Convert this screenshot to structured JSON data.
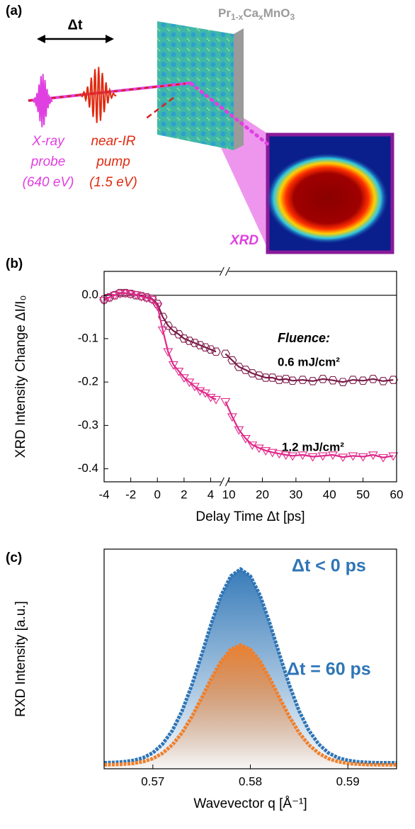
{
  "diagram": {
    "label": "(a)",
    "delay": "Δt",
    "sample": [
      "Pr",
      "1-x",
      "Ca",
      "x",
      "MnO",
      "3"
    ],
    "probe": [
      "X-ray",
      "probe",
      "(640 eV)"
    ],
    "pump": [
      "near-IR",
      "pump",
      "(1.5 eV)"
    ],
    "detector": "XRD"
  },
  "chart_data": [
    {
      "type": "scatter",
      "label": "(b)",
      "x_label": "Delay Time Δt [ps]",
      "y_label": "XRD Intensity Change ΔI/I₀",
      "annotation": "Fluence:",
      "xlim": [
        -4,
        60
      ],
      "xbreak": [
        5,
        9
      ],
      "xticks": [
        -4,
        -2,
        0,
        2,
        4,
        10,
        20,
        30,
        40,
        50,
        60
      ],
      "ylim": [
        -0.43,
        0.055
      ],
      "yticks": [
        {
          "value": 0,
          "label": "0.0"
        },
        -0.1,
        -0.2,
        -0.3,
        -0.4
      ],
      "zero_line": true,
      "fit_line": true,
      "x": [
        -4,
        -3.6,
        -3.2,
        -2.8,
        -2.4,
        -2,
        -1.6,
        -1.2,
        -0.8,
        -0.4,
        0,
        0.4,
        0.8,
        1.2,
        1.6,
        2,
        2.4,
        2.8,
        3.2,
        3.6,
        4,
        4.4,
        9,
        11,
        13,
        15,
        17,
        19,
        21,
        23,
        25,
        27,
        29,
        32,
        35,
        38,
        41,
        44,
        47,
        50,
        53,
        56,
        59
      ],
      "series": [
        {
          "name": "0.6 mJ/cm²",
          "color": "#7a1a48",
          "marker": "hexagon",
          "values": [
            -0.01,
            -0.005,
            0,
            0.005,
            0.005,
            0.003,
            0,
            -0.002,
            -0.005,
            -0.008,
            -0.02,
            -0.05,
            -0.07,
            -0.082,
            -0.09,
            -0.1,
            -0.105,
            -0.11,
            -0.115,
            -0.12,
            -0.125,
            -0.13,
            -0.135,
            -0.15,
            -0.165,
            -0.172,
            -0.18,
            -0.185,
            -0.19,
            -0.19,
            -0.195,
            -0.193,
            -0.197,
            -0.195,
            -0.198,
            -0.193,
            -0.196,
            -0.2,
            -0.195,
            -0.197,
            -0.193,
            -0.198,
            -0.195
          ]
        },
        {
          "name": "1.2 mJ/cm²",
          "color": "#e0288a",
          "marker": "triangle-down",
          "values": [
            -0.012,
            -0.005,
            0,
            0.004,
            0.005,
            0.003,
            0.001,
            -0.003,
            -0.006,
            -0.01,
            -0.025,
            -0.08,
            -0.13,
            -0.16,
            -0.175,
            -0.19,
            -0.2,
            -0.21,
            -0.22,
            -0.225,
            -0.235,
            -0.24,
            -0.245,
            -0.28,
            -0.31,
            -0.33,
            -0.345,
            -0.352,
            -0.358,
            -0.362,
            -0.365,
            -0.368,
            -0.37,
            -0.368,
            -0.372,
            -0.37,
            -0.368,
            -0.373,
            -0.37,
            -0.372,
            -0.368,
            -0.374,
            -0.37
          ]
        }
      ]
    },
    {
      "type": "line",
      "label": "(c)",
      "x_label": "Wavevector q [Å⁻¹]",
      "y_label": "RXD Intensity  [a.u.]",
      "fill_gradient": true,
      "xlim": [
        0.565,
        0.595
      ],
      "xticks": [
        0.57,
        0.58,
        0.59
      ],
      "ylim": [
        0,
        1.1
      ],
      "x": [
        0.565,
        0.566,
        0.567,
        0.568,
        0.569,
        0.57,
        0.571,
        0.572,
        0.573,
        0.574,
        0.575,
        0.576,
        0.577,
        0.578,
        0.579,
        0.58,
        0.581,
        0.582,
        0.583,
        0.584,
        0.585,
        0.586,
        0.587,
        0.588,
        0.589,
        0.59,
        0.591,
        0.592,
        0.593,
        0.594,
        0.595
      ],
      "series": [
        {
          "name": "Δt < 0 ps",
          "color": "#2e75b6",
          "values": [
            0.03,
            0.032,
            0.035,
            0.042,
            0.055,
            0.08,
            0.124,
            0.192,
            0.29,
            0.419,
            0.571,
            0.728,
            0.868,
            0.965,
            1.0,
            0.965,
            0.868,
            0.728,
            0.571,
            0.419,
            0.29,
            0.192,
            0.124,
            0.08,
            0.055,
            0.042,
            0.035,
            0.032,
            0.03,
            0.03,
            0.03
          ]
        },
        {
          "name": "Δt = 60 ps",
          "color": "#f07f2a",
          "values": [
            0.02,
            0.021,
            0.023,
            0.027,
            0.036,
            0.051,
            0.078,
            0.12,
            0.181,
            0.261,
            0.355,
            0.452,
            0.538,
            0.598,
            0.62,
            0.598,
            0.538,
            0.452,
            0.355,
            0.261,
            0.181,
            0.12,
            0.078,
            0.051,
            0.036,
            0.027,
            0.023,
            0.021,
            0.02,
            0.02,
            0.02
          ]
        }
      ]
    }
  ]
}
